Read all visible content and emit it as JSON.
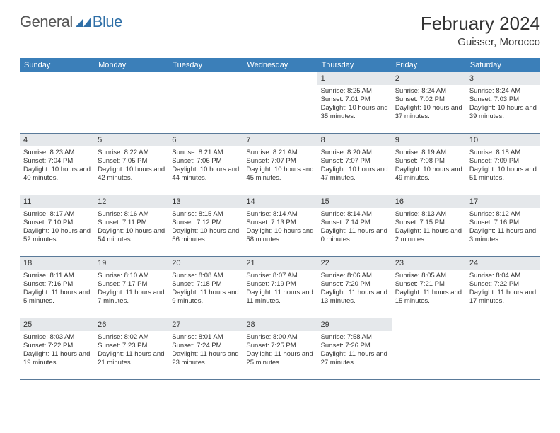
{
  "logo": {
    "text1": "General",
    "text2": "Blue"
  },
  "title": "February 2024",
  "location": "Guisser, Morocco",
  "colors": {
    "header_bg": "#3b7fb9",
    "daynum_bg": "#e5e8eb",
    "rule": "#5a7a99",
    "logo_blue": "#2f6fa7"
  },
  "weekdays": [
    "Sunday",
    "Monday",
    "Tuesday",
    "Wednesday",
    "Thursday",
    "Friday",
    "Saturday"
  ],
  "weeks": [
    [
      {
        "n": "",
        "sr": "",
        "ss": "",
        "dl": ""
      },
      {
        "n": "",
        "sr": "",
        "ss": "",
        "dl": ""
      },
      {
        "n": "",
        "sr": "",
        "ss": "",
        "dl": ""
      },
      {
        "n": "",
        "sr": "",
        "ss": "",
        "dl": ""
      },
      {
        "n": "1",
        "sr": "Sunrise: 8:25 AM",
        "ss": "Sunset: 7:01 PM",
        "dl": "Daylight: 10 hours and 35 minutes."
      },
      {
        "n": "2",
        "sr": "Sunrise: 8:24 AM",
        "ss": "Sunset: 7:02 PM",
        "dl": "Daylight: 10 hours and 37 minutes."
      },
      {
        "n": "3",
        "sr": "Sunrise: 8:24 AM",
        "ss": "Sunset: 7:03 PM",
        "dl": "Daylight: 10 hours and 39 minutes."
      }
    ],
    [
      {
        "n": "4",
        "sr": "Sunrise: 8:23 AM",
        "ss": "Sunset: 7:04 PM",
        "dl": "Daylight: 10 hours and 40 minutes."
      },
      {
        "n": "5",
        "sr": "Sunrise: 8:22 AM",
        "ss": "Sunset: 7:05 PM",
        "dl": "Daylight: 10 hours and 42 minutes."
      },
      {
        "n": "6",
        "sr": "Sunrise: 8:21 AM",
        "ss": "Sunset: 7:06 PM",
        "dl": "Daylight: 10 hours and 44 minutes."
      },
      {
        "n": "7",
        "sr": "Sunrise: 8:21 AM",
        "ss": "Sunset: 7:07 PM",
        "dl": "Daylight: 10 hours and 45 minutes."
      },
      {
        "n": "8",
        "sr": "Sunrise: 8:20 AM",
        "ss": "Sunset: 7:07 PM",
        "dl": "Daylight: 10 hours and 47 minutes."
      },
      {
        "n": "9",
        "sr": "Sunrise: 8:19 AM",
        "ss": "Sunset: 7:08 PM",
        "dl": "Daylight: 10 hours and 49 minutes."
      },
      {
        "n": "10",
        "sr": "Sunrise: 8:18 AM",
        "ss": "Sunset: 7:09 PM",
        "dl": "Daylight: 10 hours and 51 minutes."
      }
    ],
    [
      {
        "n": "11",
        "sr": "Sunrise: 8:17 AM",
        "ss": "Sunset: 7:10 PM",
        "dl": "Daylight: 10 hours and 52 minutes."
      },
      {
        "n": "12",
        "sr": "Sunrise: 8:16 AM",
        "ss": "Sunset: 7:11 PM",
        "dl": "Daylight: 10 hours and 54 minutes."
      },
      {
        "n": "13",
        "sr": "Sunrise: 8:15 AM",
        "ss": "Sunset: 7:12 PM",
        "dl": "Daylight: 10 hours and 56 minutes."
      },
      {
        "n": "14",
        "sr": "Sunrise: 8:14 AM",
        "ss": "Sunset: 7:13 PM",
        "dl": "Daylight: 10 hours and 58 minutes."
      },
      {
        "n": "15",
        "sr": "Sunrise: 8:14 AM",
        "ss": "Sunset: 7:14 PM",
        "dl": "Daylight: 11 hours and 0 minutes."
      },
      {
        "n": "16",
        "sr": "Sunrise: 8:13 AM",
        "ss": "Sunset: 7:15 PM",
        "dl": "Daylight: 11 hours and 2 minutes."
      },
      {
        "n": "17",
        "sr": "Sunrise: 8:12 AM",
        "ss": "Sunset: 7:16 PM",
        "dl": "Daylight: 11 hours and 3 minutes."
      }
    ],
    [
      {
        "n": "18",
        "sr": "Sunrise: 8:11 AM",
        "ss": "Sunset: 7:16 PM",
        "dl": "Daylight: 11 hours and 5 minutes."
      },
      {
        "n": "19",
        "sr": "Sunrise: 8:10 AM",
        "ss": "Sunset: 7:17 PM",
        "dl": "Daylight: 11 hours and 7 minutes."
      },
      {
        "n": "20",
        "sr": "Sunrise: 8:08 AM",
        "ss": "Sunset: 7:18 PM",
        "dl": "Daylight: 11 hours and 9 minutes."
      },
      {
        "n": "21",
        "sr": "Sunrise: 8:07 AM",
        "ss": "Sunset: 7:19 PM",
        "dl": "Daylight: 11 hours and 11 minutes."
      },
      {
        "n": "22",
        "sr": "Sunrise: 8:06 AM",
        "ss": "Sunset: 7:20 PM",
        "dl": "Daylight: 11 hours and 13 minutes."
      },
      {
        "n": "23",
        "sr": "Sunrise: 8:05 AM",
        "ss": "Sunset: 7:21 PM",
        "dl": "Daylight: 11 hours and 15 minutes."
      },
      {
        "n": "24",
        "sr": "Sunrise: 8:04 AM",
        "ss": "Sunset: 7:22 PM",
        "dl": "Daylight: 11 hours and 17 minutes."
      }
    ],
    [
      {
        "n": "25",
        "sr": "Sunrise: 8:03 AM",
        "ss": "Sunset: 7:22 PM",
        "dl": "Daylight: 11 hours and 19 minutes."
      },
      {
        "n": "26",
        "sr": "Sunrise: 8:02 AM",
        "ss": "Sunset: 7:23 PM",
        "dl": "Daylight: 11 hours and 21 minutes."
      },
      {
        "n": "27",
        "sr": "Sunrise: 8:01 AM",
        "ss": "Sunset: 7:24 PM",
        "dl": "Daylight: 11 hours and 23 minutes."
      },
      {
        "n": "28",
        "sr": "Sunrise: 8:00 AM",
        "ss": "Sunset: 7:25 PM",
        "dl": "Daylight: 11 hours and 25 minutes."
      },
      {
        "n": "29",
        "sr": "Sunrise: 7:58 AM",
        "ss": "Sunset: 7:26 PM",
        "dl": "Daylight: 11 hours and 27 minutes."
      },
      {
        "n": "",
        "sr": "",
        "ss": "",
        "dl": ""
      },
      {
        "n": "",
        "sr": "",
        "ss": "",
        "dl": ""
      }
    ]
  ]
}
